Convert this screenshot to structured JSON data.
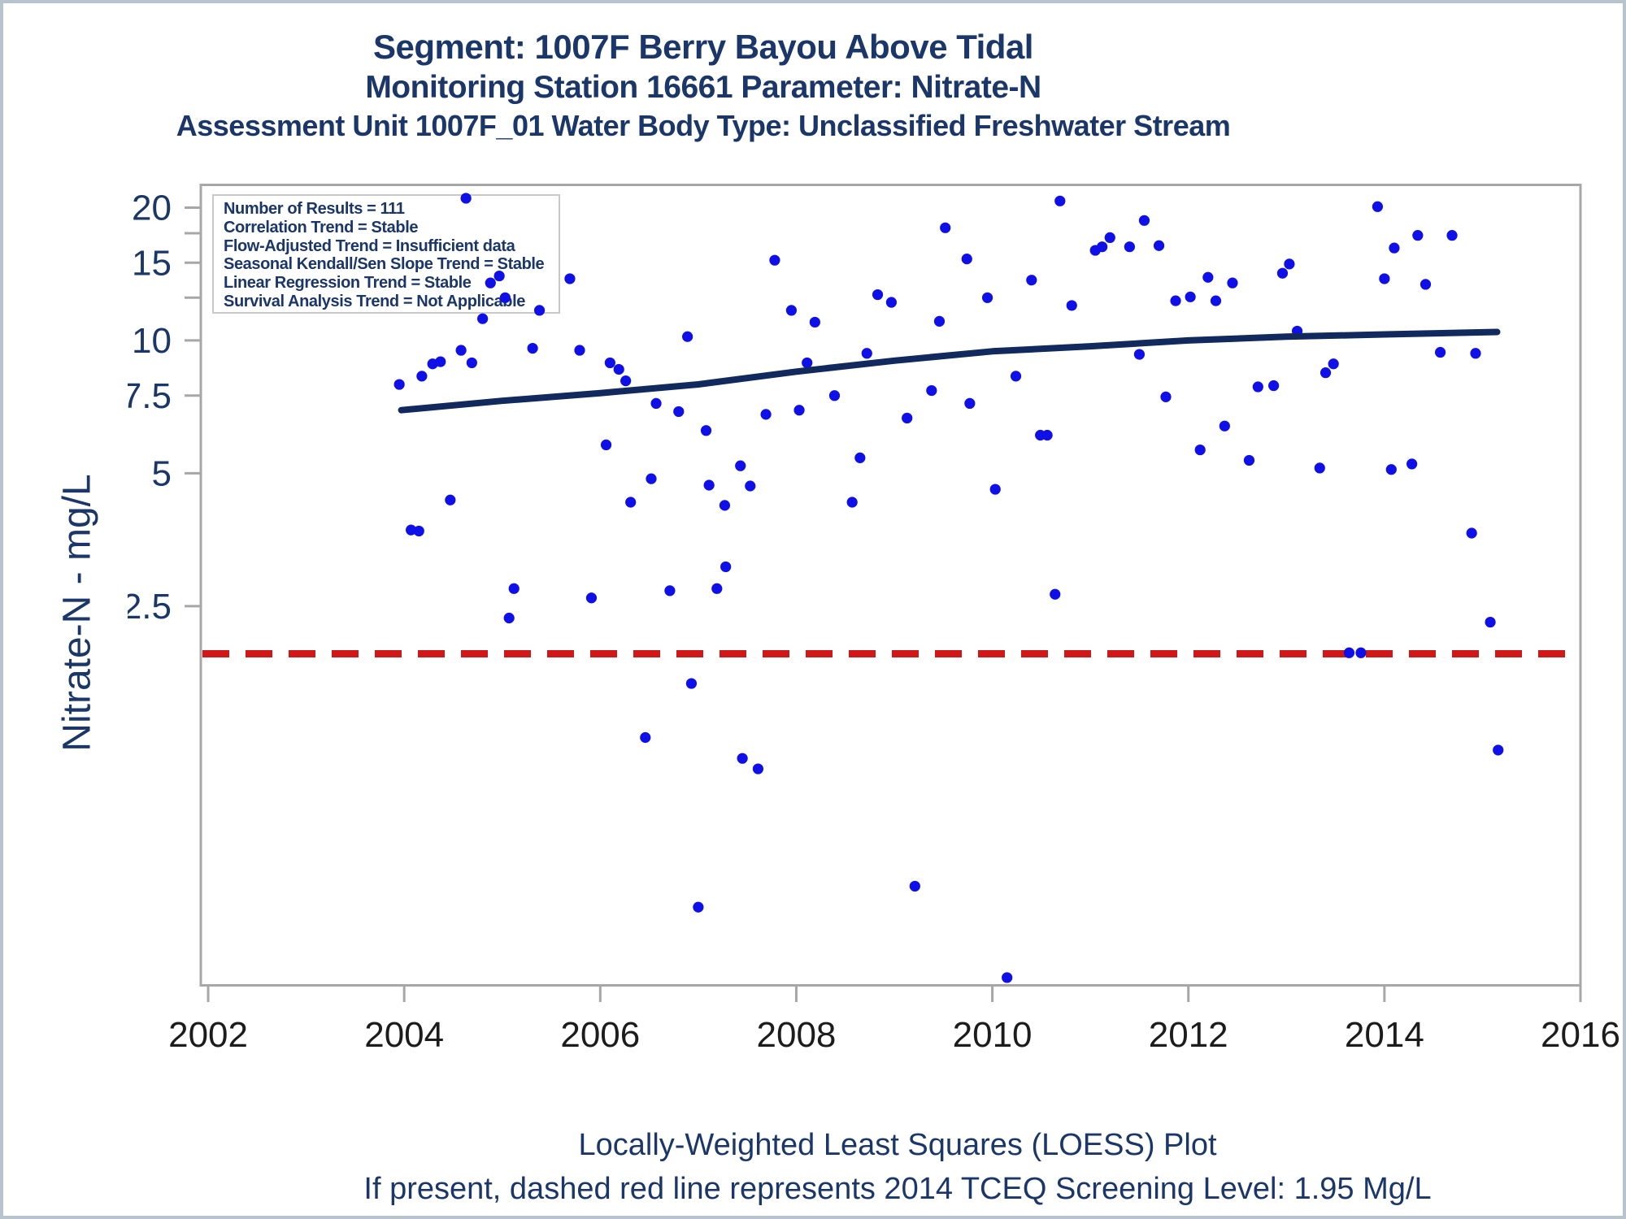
{
  "page": {
    "background": "#ffffff",
    "border_color": "#b7c3cd"
  },
  "colors": {
    "navy_text": "#1b3668",
    "point_blue": "#0f0fe8",
    "loess_navy": "#11295c",
    "screening_red": "#d01818",
    "axis_gray": "#a7a7a7",
    "x_tick_label": "#1c1c1c",
    "statbox_border": "#c9c9c9"
  },
  "chart_data": {
    "type": "scatter",
    "title": "Segment: 1007F  Berry Bayou Above Tidal",
    "subtitle": "Monitoring Station 16661 Parameter: Nitrate-N",
    "subtitle2": "Assessment Unit 1007F_01   Water Body Type: Unclassified Freshwater Stream",
    "ylabel": "Nitrate-N - mg/L",
    "footnote1": "Locally-Weighted Least Squares (LOESS) Plot",
    "footnote2": "If present, dashed red line represents 2014 TCEQ Screening Level: 1.95 Mg/L",
    "stats_box": {
      "lines": [
        "Number of Results = 111",
        "Correlation Trend = Stable",
        "Flow-Adjusted Trend = Insufficient data",
        "Seasonal Kendall/Sen Slope Trend = Stable",
        "Linear Regression Trend = Stable",
        "Survival Analysis Trend = Not Applicable"
      ]
    },
    "x_axis": {
      "min": 2001.925,
      "max": 2016,
      "ticks": [
        2002,
        2004,
        2006,
        2008,
        2010,
        2012,
        2014,
        2016
      ],
      "grid": false
    },
    "y_axis": {
      "scale": "log",
      "min": 0.345,
      "max": 22.66,
      "grid": false,
      "ticks": [
        {
          "value": 20,
          "label": "20"
        },
        {
          "value": 17.5,
          "label": ""
        },
        {
          "value": 15,
          "label": "15"
        },
        {
          "value": 12.5,
          "label": ""
        },
        {
          "value": 10,
          "label": "10"
        },
        {
          "value": 7.5,
          "label": "7.5"
        },
        {
          "value": 5,
          "label": "5"
        },
        {
          "value": 2.5,
          "label": "2.5"
        }
      ]
    },
    "screening_level": {
      "value": 1.95,
      "label": "2014 TCEQ Screening Level: 1.95 Mg/L",
      "style": "dashed-red"
    },
    "loess_line": {
      "points": [
        [
          2003.97,
          6.95
        ],
        [
          2005.0,
          7.3
        ],
        [
          2006.0,
          7.6
        ],
        [
          2007.0,
          7.95
        ],
        [
          2008.0,
          8.5
        ],
        [
          2009.0,
          9.0
        ],
        [
          2010.0,
          9.45
        ],
        [
          2011.0,
          9.7
        ],
        [
          2012.0,
          10.0
        ],
        [
          2013.0,
          10.2
        ],
        [
          2014.0,
          10.32
        ],
        [
          2015.15,
          10.45
        ]
      ]
    },
    "points": [
      [
        2004.63,
        21.0
      ],
      [
        2004.88,
        13.5
      ],
      [
        2004.97,
        14.0
      ],
      [
        2005.69,
        13.8
      ],
      [
        2005.03,
        12.5
      ],
      [
        2005.38,
        11.7
      ],
      [
        2004.8,
        11.2
      ],
      [
        2006.89,
        10.2
      ],
      [
        2005.31,
        9.6
      ],
      [
        2005.79,
        9.5
      ],
      [
        2004.58,
        9.5
      ],
      [
        2004.29,
        8.85
      ],
      [
        2004.37,
        8.95
      ],
      [
        2004.69,
        8.9
      ],
      [
        2006.1,
        8.9
      ],
      [
        2006.19,
        8.6
      ],
      [
        2004.18,
        8.3
      ],
      [
        2003.95,
        7.95
      ],
      [
        2006.26,
        8.1
      ],
      [
        2006.57,
        7.2
      ],
      [
        2006.8,
        6.9
      ],
      [
        2007.08,
        6.25
      ],
      [
        2006.06,
        5.8
      ],
      [
        2006.52,
        4.86
      ],
      [
        2007.11,
        4.7
      ],
      [
        2007.43,
        5.2
      ],
      [
        2004.47,
        4.35
      ],
      [
        2006.31,
        4.3
      ],
      [
        2010.69,
        20.7
      ],
      [
        2009.52,
        18.0
      ],
      [
        2011.55,
        18.7
      ],
      [
        2011.2,
        17.1
      ],
      [
        2011.05,
        16.0
      ],
      [
        2011.12,
        16.3
      ],
      [
        2011.4,
        16.3
      ],
      [
        2011.7,
        16.4
      ],
      [
        2007.78,
        15.2
      ],
      [
        2009.74,
        15.3
      ],
      [
        2010.4,
        13.7
      ],
      [
        2008.83,
        12.7
      ],
      [
        2008.97,
        12.2
      ],
      [
        2009.95,
        12.5
      ],
      [
        2010.81,
        12.0
      ],
      [
        2007.95,
        11.7
      ],
      [
        2008.19,
        11.0
      ],
      [
        2009.46,
        11.05
      ],
      [
        2008.72,
        9.35
      ],
      [
        2008.11,
        8.9
      ],
      [
        2011.5,
        9.3
      ],
      [
        2010.24,
        8.3
      ],
      [
        2009.38,
        7.7
      ],
      [
        2008.39,
        7.5
      ],
      [
        2009.77,
        7.2
      ],
      [
        2007.69,
        6.8
      ],
      [
        2008.03,
        6.95
      ],
      [
        2009.13,
        6.67
      ],
      [
        2010.49,
        6.1
      ],
      [
        2010.56,
        6.1
      ],
      [
        2008.65,
        5.42
      ],
      [
        2010.03,
        4.6
      ],
      [
        2007.53,
        4.68
      ],
      [
        2013.93,
        20.1
      ],
      [
        2014.34,
        17.3
      ],
      [
        2014.69,
        17.3
      ],
      [
        2014.1,
        16.2
      ],
      [
        2013.03,
        14.9
      ],
      [
        2012.96,
        14.2
      ],
      [
        2012.2,
        13.9
      ],
      [
        2012.45,
        13.5
      ],
      [
        2014.0,
        13.8
      ],
      [
        2014.42,
        13.4
      ],
      [
        2011.87,
        12.3
      ],
      [
        2012.02,
        12.55
      ],
      [
        2012.28,
        12.3
      ],
      [
        2013.11,
        10.5
      ],
      [
        2014.57,
        9.4
      ],
      [
        2014.93,
        9.35
      ],
      [
        2013.48,
        8.85
      ],
      [
        2013.4,
        8.45
      ],
      [
        2012.71,
        7.85
      ],
      [
        2012.87,
        7.9
      ],
      [
        2011.77,
        7.45
      ],
      [
        2012.37,
        6.4
      ],
      [
        2012.12,
        5.65
      ],
      [
        2012.62,
        5.35
      ],
      [
        2013.34,
        5.14
      ],
      [
        2014.07,
        5.1
      ],
      [
        2014.28,
        5.25
      ],
      [
        2004.07,
        3.72
      ],
      [
        2004.15,
        3.7
      ],
      [
        2005.12,
        2.74
      ],
      [
        2005.07,
        2.35
      ],
      [
        2005.91,
        2.61
      ],
      [
        2006.71,
        2.71
      ],
      [
        2007.19,
        2.74
      ],
      [
        2007.28,
        3.07
      ],
      [
        2006.93,
        1.67
      ],
      [
        2006.46,
        1.26
      ],
      [
        2007.0,
        0.52
      ],
      [
        2007.27,
        4.23
      ],
      [
        2008.57,
        4.3
      ],
      [
        2010.64,
        2.66
      ],
      [
        2007.45,
        1.13
      ],
      [
        2007.61,
        1.07
      ],
      [
        2009.21,
        0.58
      ],
      [
        2010.15,
        0.36
      ],
      [
        2014.89,
        3.66
      ],
      [
        2015.08,
        2.3
      ],
      [
        2013.64,
        1.96
      ],
      [
        2013.76,
        1.96
      ],
      [
        2015.16,
        1.18
      ]
    ]
  }
}
